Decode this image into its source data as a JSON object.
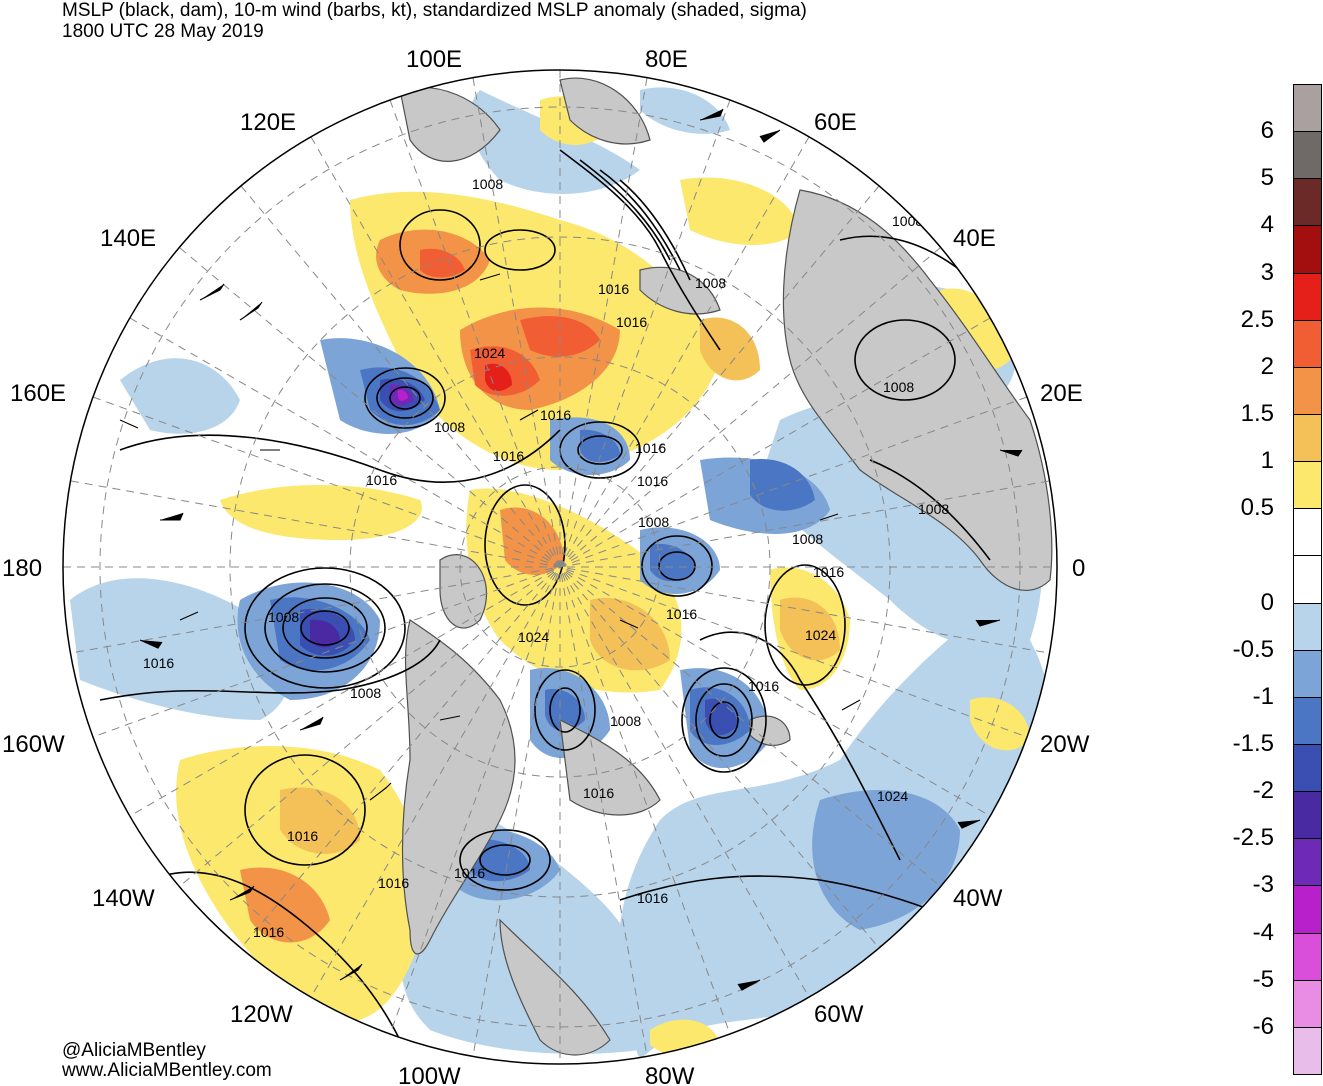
{
  "title": {
    "line1": "MSLP (black, dam), 10-m wind (barbs, kt), standardized MSLP anomaly (shaded, sigma)",
    "line2": "1800 UTC 28 May 2019"
  },
  "credits": {
    "handle": "@AliciaMBentley",
    "website": "www.AliciaMBentley.com"
  },
  "longitude_labels": [
    "100E",
    "80E",
    "120E",
    "60E",
    "140E",
    "40E",
    "160E",
    "20E",
    "180",
    "0",
    "160W",
    "20W",
    "140W",
    "40W",
    "120W",
    "60W",
    "100W",
    "80W"
  ],
  "isobar_labels": [
    "1008",
    "1008",
    "1016",
    "1016",
    "1008",
    "1024",
    "1008",
    "1016",
    "1016",
    "1016",
    "1016",
    "1008",
    "1008",
    "1008",
    "1008",
    "1016",
    "1024",
    "1016",
    "1008",
    "1016",
    "1024",
    "1016",
    "1008",
    "1016",
    "1008",
    "1016",
    "1024",
    "1016",
    "1016"
  ],
  "colorbar": {
    "labels": [
      "6",
      "5",
      "4",
      "3",
      "2.5",
      "2",
      "1.5",
      "1",
      "0.5",
      "0",
      "-0.5",
      "-1",
      "-1.5",
      "-2",
      "-2.5",
      "-3",
      "-4",
      "-5",
      "-6"
    ],
    "colors": [
      "#a9a09f",
      "#6f6a68",
      "#6b2a28",
      "#a30f0f",
      "#e5201b",
      "#f25e34",
      "#f39347",
      "#f4c159",
      "#fbe86d",
      "#ffffff",
      "#ffffff",
      "#b7d4eb",
      "#7ca4d6",
      "#4b76c4",
      "#3b4fb2",
      "#4a2aa3",
      "#6e29b6",
      "#b820cc",
      "#d94fd9",
      "#e88ce4",
      "#e9bde9"
    ]
  },
  "colors": {
    "land": "#c8c8c8",
    "coast": "#505050",
    "isobar": "#000000",
    "grid": "#888888"
  }
}
